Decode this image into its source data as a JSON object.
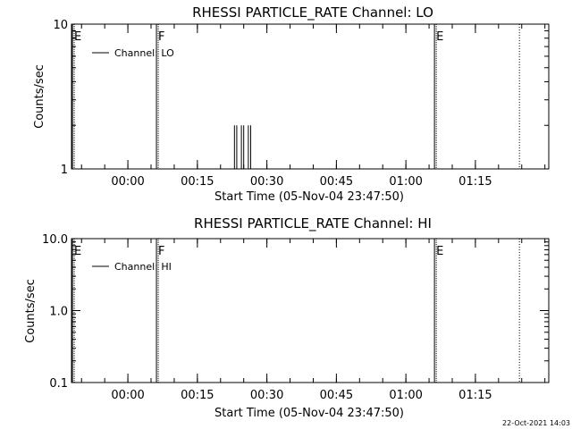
{
  "chart_data": [
    {
      "type": "line",
      "title": "RHESSI PARTICLE_RATE Channel: LO",
      "xlabel": "Start Time (05-Nov-04 23:47:50)",
      "ylabel": "Counts/sec",
      "yscale": "log",
      "ylim": [
        1,
        10
      ],
      "ytick_labels": [
        "1",
        "10"
      ],
      "xlim_minutes_from_start": [
        0,
        103
      ],
      "xtick_labels": [
        "00:00",
        "00:15",
        "00:30",
        "00:45",
        "01:00",
        "01:15"
      ],
      "legend_placement": "top-left",
      "series": [
        {
          "name": "Channel: LO",
          "values": [
            {
              "t": "00:23:00",
              "y": 2
            },
            {
              "t": "00:23:30",
              "y": 2
            },
            {
              "t": "00:24:30",
              "y": 2
            },
            {
              "t": "00:25:00",
              "y": 2
            },
            {
              "t": "00:26:00",
              "y": 2
            },
            {
              "t": "00:26:30",
              "y": 2
            }
          ]
        }
      ],
      "markers": [
        {
          "label": "E",
          "time": "23:47:50",
          "style": "solid"
        },
        {
          "label": "F",
          "time": "00:06:10",
          "style": "solid"
        },
        {
          "label": "E",
          "time": "01:06:10",
          "style": "solid"
        },
        {
          "label": "",
          "time": "01:24:30",
          "style": "dotted"
        }
      ]
    },
    {
      "type": "line",
      "title": "RHESSI PARTICLE_RATE Channel: HI",
      "xlabel": "Start Time (05-Nov-04 23:47:50)",
      "ylabel": "Counts/sec",
      "yscale": "log",
      "ylim": [
        0.1,
        10
      ],
      "ytick_labels": [
        "0.1",
        "1.0",
        "10.0"
      ],
      "xlim_minutes_from_start": [
        0,
        103
      ],
      "xtick_labels": [
        "00:00",
        "00:15",
        "00:30",
        "00:45",
        "01:00",
        "01:15"
      ],
      "legend_placement": "top-left",
      "series": [
        {
          "name": "Channel: HI",
          "values": []
        }
      ],
      "markers": [
        {
          "label": "E",
          "time": "23:47:50",
          "style": "solid"
        },
        {
          "label": "F",
          "time": "00:06:10",
          "style": "solid"
        },
        {
          "label": "E",
          "time": "01:06:10",
          "style": "solid"
        },
        {
          "label": "",
          "time": "01:24:30",
          "style": "dotted"
        }
      ]
    }
  ],
  "footer": {
    "timestamp": "22-Oct-2021 14:03"
  }
}
